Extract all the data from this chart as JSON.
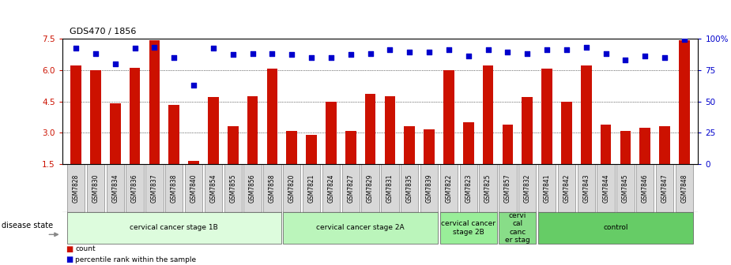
{
  "title": "GDS470 / 1856",
  "samples": [
    "GSM7828",
    "GSM7830",
    "GSM7834",
    "GSM7836",
    "GSM7837",
    "GSM7838",
    "GSM7840",
    "GSM7854",
    "GSM7855",
    "GSM7856",
    "GSM7858",
    "GSM7820",
    "GSM7821",
    "GSM7824",
    "GSM7827",
    "GSM7829",
    "GSM7831",
    "GSM7835",
    "GSM7839",
    "GSM7822",
    "GSM7823",
    "GSM7825",
    "GSM7857",
    "GSM7832",
    "GSM7841",
    "GSM7842",
    "GSM7843",
    "GSM7844",
    "GSM7845",
    "GSM7846",
    "GSM7847",
    "GSM7848"
  ],
  "counts": [
    6.2,
    6.0,
    4.4,
    6.1,
    7.4,
    4.35,
    1.65,
    4.7,
    3.3,
    4.75,
    6.05,
    3.1,
    2.9,
    4.5,
    3.1,
    4.85,
    4.75,
    3.3,
    3.15,
    6.0,
    3.5,
    6.2,
    3.4,
    4.7,
    6.05,
    4.5,
    6.2,
    3.4,
    3.1,
    3.25,
    3.3,
    7.4
  ],
  "percentiles": [
    92,
    88,
    80,
    92,
    93,
    85,
    63,
    92,
    87,
    88,
    88,
    87,
    85,
    85,
    87,
    88,
    91,
    89,
    89,
    91,
    86,
    91,
    89,
    88,
    91,
    91,
    93,
    88,
    83,
    86,
    85,
    99
  ],
  "ylim": [
    1.5,
    7.5
  ],
  "yticks": [
    1.5,
    3.0,
    4.5,
    6.0,
    7.5
  ],
  "right_ylim": [
    0,
    100
  ],
  "right_yticks": [
    0,
    25,
    50,
    75,
    100
  ],
  "bar_color": "#cc1100",
  "dot_color": "#0000cc",
  "bg_color": "#ffffff",
  "xtick_box_color": "#cccccc",
  "groups": [
    {
      "label": "cervical cancer stage 1B",
      "start": 0,
      "end": 10,
      "color": "#ddfcdd"
    },
    {
      "label": "cervical cancer stage 2A",
      "start": 11,
      "end": 18,
      "color": "#bbf5bb"
    },
    {
      "label": "cervical cancer\nstage 2B",
      "start": 19,
      "end": 21,
      "color": "#99ee99"
    },
    {
      "label": "cervi\ncal\ncanc\ner stag",
      "start": 22,
      "end": 23,
      "color": "#88dd88"
    },
    {
      "label": "control",
      "start": 24,
      "end": 31,
      "color": "#66cc66"
    }
  ],
  "disease_state_label": "disease state"
}
